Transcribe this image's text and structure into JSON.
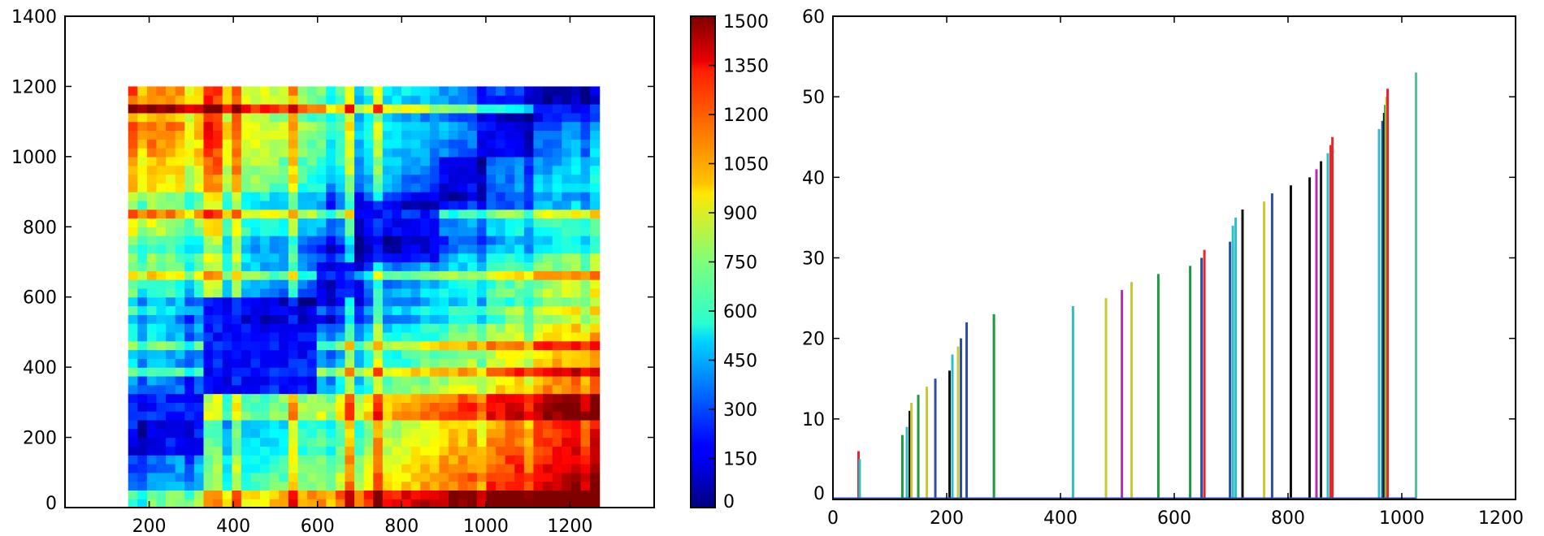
{
  "chart_data": [
    {
      "type": "heatmap",
      "title": "",
      "xlabel": "",
      "ylabel": "",
      "xlim": [
        0,
        1400
      ],
      "ylim": [
        0,
        1400
      ],
      "xticks": [
        200,
        400,
        600,
        800,
        1000,
        1200
      ],
      "xtick_labels": [
        "200",
        "400",
        "600",
        "800",
        "1000",
        "1200"
      ],
      "yticks": [
        0,
        200,
        400,
        600,
        800,
        1000,
        1200,
        1400
      ],
      "ytick_labels": [
        "0",
        "200",
        "400",
        "600",
        "800",
        "1000",
        "1200",
        "1400"
      ],
      "extent": [
        150,
        1270,
        0,
        1200
      ],
      "grid_size": [
        50,
        48
      ],
      "boundaries": [
        0,
        150,
        330,
        600,
        690,
        880,
        1000,
        1120,
        1200
      ],
      "colormap": "jet",
      "color_range": [
        0,
        1500
      ],
      "colorbar_ticks": [
        0,
        150,
        300,
        450,
        600,
        750,
        900,
        1050,
        1200,
        1350,
        1500
      ],
      "colorbar_tick_labels": [
        "0",
        "150",
        "300",
        "450",
        "600",
        "750",
        "900",
        "1050",
        "1200",
        "1350",
        "1500"
      ],
      "grid": false
    },
    {
      "type": "bar",
      "title": "",
      "xlabel": "",
      "ylabel": "",
      "xlim": [
        0,
        1200
      ],
      "ylim": [
        0,
        60
      ],
      "xticks": [
        0,
        200,
        400,
        600,
        800,
        1000,
        1200
      ],
      "xtick_labels": [
        "0",
        "200",
        "400",
        "600",
        "800",
        "1000",
        "1200"
      ],
      "yticks": [
        0,
        10,
        20,
        30,
        40,
        50,
        60
      ],
      "ytick_labels": [
        "0",
        "10",
        "20",
        "30",
        "40",
        "50",
        "60"
      ],
      "grid": false,
      "bars": [
        {
          "x": 45,
          "y": 6,
          "color": "#e8262c"
        },
        {
          "x": 47,
          "y": 5,
          "color": "#2cbfc4"
        },
        {
          "x": 122,
          "y": 8,
          "color": "#1a9a3a"
        },
        {
          "x": 130,
          "y": 9,
          "color": "#2cbfc4"
        },
        {
          "x": 135,
          "y": 11,
          "color": "#111111"
        },
        {
          "x": 138,
          "y": 12,
          "color": "#c9c933"
        },
        {
          "x": 150,
          "y": 13,
          "color": "#1a9a3a"
        },
        {
          "x": 165,
          "y": 14,
          "color": "#c9c933"
        },
        {
          "x": 180,
          "y": 15,
          "color": "#2b4ea8"
        },
        {
          "x": 205,
          "y": 16,
          "color": "#111111"
        },
        {
          "x": 210,
          "y": 18,
          "color": "#2cbfc4"
        },
        {
          "x": 220,
          "y": 19,
          "color": "#c9c933"
        },
        {
          "x": 225,
          "y": 20,
          "color": "#2b4ea8"
        },
        {
          "x": 235,
          "y": 22,
          "color": "#2b4ea8"
        },
        {
          "x": 283,
          "y": 23,
          "color": "#1a9a3a"
        },
        {
          "x": 422,
          "y": 24,
          "color": "#2cbfc4"
        },
        {
          "x": 480,
          "y": 25,
          "color": "#c9c933"
        },
        {
          "x": 508,
          "y": 26,
          "color": "#b030b0"
        },
        {
          "x": 525,
          "y": 27,
          "color": "#c9c933"
        },
        {
          "x": 572,
          "y": 28,
          "color": "#1a9a3a"
        },
        {
          "x": 628,
          "y": 29,
          "color": "#1a9a3a"
        },
        {
          "x": 648,
          "y": 30,
          "color": "#2b4ea8"
        },
        {
          "x": 653,
          "y": 31,
          "color": "#e8262c"
        },
        {
          "x": 698,
          "y": 32,
          "color": "#2b4ea8"
        },
        {
          "x": 703,
          "y": 34,
          "color": "#2cbfc4"
        },
        {
          "x": 708,
          "y": 35,
          "color": "#2cbfc4"
        },
        {
          "x": 720,
          "y": 36,
          "color": "#111111"
        },
        {
          "x": 758,
          "y": 37,
          "color": "#c9c933"
        },
        {
          "x": 772,
          "y": 38,
          "color": "#2b4ea8"
        },
        {
          "x": 805,
          "y": 39,
          "color": "#111111"
        },
        {
          "x": 838,
          "y": 40,
          "color": "#111111"
        },
        {
          "x": 850,
          "y": 41,
          "color": "#b030b0"
        },
        {
          "x": 858,
          "y": 42,
          "color": "#111111"
        },
        {
          "x": 870,
          "y": 43,
          "color": "#2cbfc4"
        },
        {
          "x": 875,
          "y": 44,
          "color": "#e8262c"
        },
        {
          "x": 878,
          "y": 45,
          "color": "#e8262c"
        },
        {
          "x": 960,
          "y": 46,
          "color": "#2cbfc4"
        },
        {
          "x": 966,
          "y": 47,
          "color": "#2b4ea8"
        },
        {
          "x": 969,
          "y": 48,
          "color": "#111111"
        },
        {
          "x": 971,
          "y": 49,
          "color": "#1a9a3a"
        },
        {
          "x": 973,
          "y": 50,
          "color": "#c9c933"
        },
        {
          "x": 975,
          "y": 51,
          "color": "#e8262c"
        },
        {
          "x": 1025,
          "y": 53,
          "color": "#4fc3a0"
        }
      ]
    }
  ]
}
